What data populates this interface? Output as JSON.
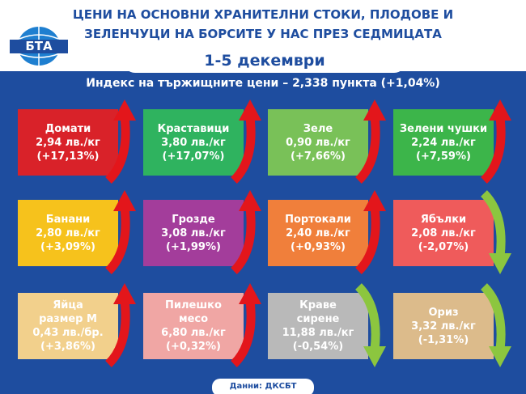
{
  "header": {
    "logo": "БТА",
    "title_lines": [
      "ЦЕНИ НА ОСНОВНИ ХРАНИТЕЛНИ СТОКИ, ПЛОДОВЕ И",
      "ЗЕЛЕНЧУЦИ НА БОРСИТЕ У НАС ПРЕЗ СЕДМИЦАТА"
    ],
    "date": "1-5 декември"
  },
  "index_line": "Индекс на тържищните цени – 2,338 пункта (+1,04%)",
  "tiles": [
    {
      "lines": [
        "Домати",
        "2,94 лв./кг",
        "(+17,13%)"
      ],
      "color": "#d92229",
      "trend": "up"
    },
    {
      "lines": [
        "Краставици",
        "3,80 лв./кг",
        "(+17,07%)"
      ],
      "color": "#2fb35f",
      "trend": "up"
    },
    {
      "lines": [
        "Зеле",
        "0,90 лв./кг",
        "(+7,66%)"
      ],
      "color": "#79c158",
      "trend": "up"
    },
    {
      "lines": [
        "Зелени чушки",
        "2,24 лв./кг",
        "(+7,59%)"
      ],
      "color": "#3cb54a",
      "trend": "up"
    },
    {
      "lines": [
        "Банани",
        "2,80 лв./кг",
        "(+3,09%)"
      ],
      "color": "#f6c21c",
      "trend": "up"
    },
    {
      "lines": [
        "Грозде",
        "3,08 лв./кг",
        "(+1,99%)"
      ],
      "color": "#a33d9b",
      "trend": "up"
    },
    {
      "lines": [
        "Портокали",
        "2,40 лв./кг",
        "(+0,93%)"
      ],
      "color": "#f07f3b",
      "trend": "up"
    },
    {
      "lines": [
        "Ябълки",
        "2,08 лв./кг",
        "(-2,07%)"
      ],
      "color": "#ef5b5b",
      "trend": "down"
    },
    {
      "lines": [
        "Яйца",
        "размер М",
        "0,43 лв./бр.",
        "(+3,86%)"
      ],
      "color": "#f2d08c",
      "trend": "up"
    },
    {
      "lines": [
        "Пилешко",
        "месо",
        "6,80 лв./кг",
        "(+0,32%)"
      ],
      "color": "#f0a6a4",
      "trend": "up"
    },
    {
      "lines": [
        "Краве",
        "сирене",
        "11,88 лв./кг",
        "(-0,54%)"
      ],
      "color": "#b9b9b9",
      "trend": "down"
    },
    {
      "lines": [
        "Ориз",
        "3,32 лв./кг",
        "(-1,31%)"
      ],
      "color": "#dcbb8b",
      "trend": "down"
    }
  ],
  "source": "Данни: ДКСБТ"
}
